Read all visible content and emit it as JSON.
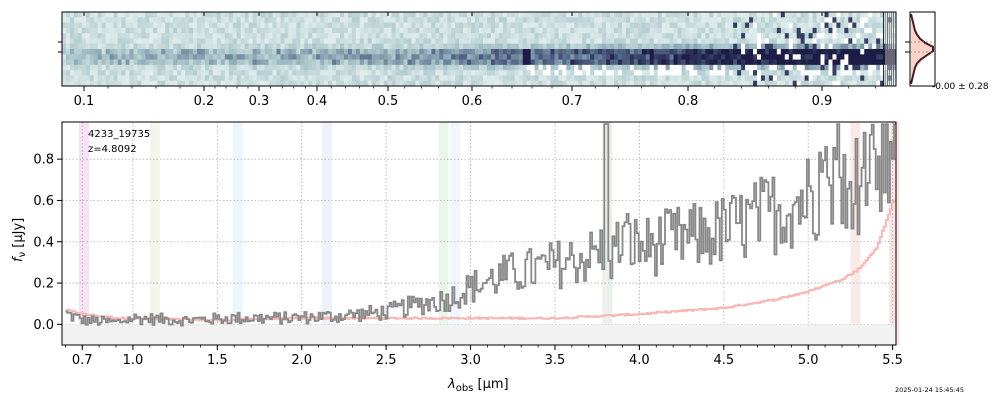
{
  "chart_data": {
    "type": "line",
    "object_id": "4233_19735",
    "redshift_label": "z=4.8092",
    "timestamp": "2025-01-24 15:45:45",
    "xlabel": "λ_obs [μm]",
    "xlabel_main": "λ",
    "xlabel_sub": "obs",
    "xlabel_unit": "[μm]",
    "ylabel": "f_ν [μJy]",
    "ylabel_main": "f",
    "ylabel_sub": "ν",
    "ylabel_unit": "[μJy]",
    "xlim": [
      0.58,
      5.52
    ],
    "ylim": [
      -0.1,
      0.98
    ],
    "grid": true,
    "xticks": [
      {
        "value": 0.7,
        "label": "0.7"
      },
      {
        "value": 1.0,
        "label": "1.0"
      },
      {
        "value": 1.5,
        "label": "1.5"
      },
      {
        "value": 2.0,
        "label": "2.0"
      },
      {
        "value": 2.5,
        "label": "2.5"
      },
      {
        "value": 3.0,
        "label": "3.0"
      },
      {
        "value": 3.5,
        "label": "3.5"
      },
      {
        "value": 4.0,
        "label": "4.0"
      },
      {
        "value": 4.5,
        "label": "4.5"
      },
      {
        "value": 5.0,
        "label": "5.0"
      },
      {
        "value": 5.5,
        "label": "5.5"
      }
    ],
    "yticks": [
      {
        "value": 0.0,
        "label": "0.0"
      },
      {
        "value": 0.2,
        "label": "0.2"
      },
      {
        "value": 0.4,
        "label": "0.4"
      },
      {
        "value": 0.6,
        "label": "0.6"
      },
      {
        "value": 0.8,
        "label": "0.8"
      }
    ],
    "spectrum_2d": {
      "axis_ticks": [
        {
          "value": 0.1,
          "label": "0.1"
        },
        {
          "value": 0.2,
          "label": "0.2"
        },
        {
          "value": 0.3,
          "label": "0.3"
        },
        {
          "value": 0.4,
          "label": "0.4"
        },
        {
          "value": 0.5,
          "label": "0.5"
        },
        {
          "value": 0.6,
          "label": "0.6"
        },
        {
          "value": 0.7,
          "label": "0.7"
        },
        {
          "value": 0.8,
          "label": "0.8"
        },
        {
          "value": 0.9,
          "label": "0.9"
        }
      ],
      "profile_label": "-0.00 ± 0.28"
    },
    "line_markers_um": [
      {
        "center": 0.71,
        "color": "#cc66cc"
      },
      {
        "center": 1.13,
        "color": "#c8c888"
      },
      {
        "center": 1.62,
        "color": "#99ccee"
      },
      {
        "center": 2.15,
        "color": "#aaaadd"
      },
      {
        "center": 2.84,
        "color": "#88cc88"
      },
      {
        "center": 2.91,
        "color": "#aaccee"
      },
      {
        "center": 3.81,
        "color": "#88aa88"
      },
      {
        "center": 5.28,
        "color": "#dd8888"
      },
      {
        "center": 5.51,
        "color": "#dd6666"
      }
    ],
    "series": [
      {
        "name": "flux",
        "color": "#888888",
        "anchors": [
          [
            0.6,
            0.05
          ],
          [
            0.7,
            0.02
          ],
          [
            0.9,
            0.01
          ],
          [
            1.0,
            0.03
          ],
          [
            1.3,
            0.02
          ],
          [
            1.6,
            0.03
          ],
          [
            1.9,
            0.03
          ],
          [
            2.2,
            0.04
          ],
          [
            2.5,
            0.06
          ],
          [
            2.7,
            0.1
          ],
          [
            2.85,
            0.12
          ],
          [
            3.0,
            0.18
          ],
          [
            3.2,
            0.24
          ],
          [
            3.4,
            0.27
          ],
          [
            3.55,
            0.3
          ],
          [
            3.7,
            0.33
          ],
          [
            3.78,
            0.36
          ],
          [
            3.8,
            0.85
          ],
          [
            3.82,
            0.32
          ],
          [
            3.9,
            0.42
          ],
          [
            4.0,
            0.37
          ],
          [
            4.2,
            0.41
          ],
          [
            4.4,
            0.43
          ],
          [
            4.6,
            0.48
          ],
          [
            4.8,
            0.55
          ],
          [
            5.0,
            0.62
          ],
          [
            5.2,
            0.7
          ],
          [
            5.3,
            0.68
          ],
          [
            5.4,
            0.72
          ],
          [
            5.5,
            0.75
          ]
        ]
      },
      {
        "name": "error",
        "color": "#f4b6b2",
        "anchors": [
          [
            0.6,
            0.07
          ],
          [
            0.7,
            0.05
          ],
          [
            0.9,
            0.03
          ],
          [
            1.5,
            0.02
          ],
          [
            2.0,
            0.03
          ],
          [
            2.5,
            0.03
          ],
          [
            3.0,
            0.03
          ],
          [
            3.5,
            0.03
          ],
          [
            4.0,
            0.05
          ],
          [
            4.5,
            0.08
          ],
          [
            4.8,
            0.12
          ],
          [
            5.0,
            0.16
          ],
          [
            5.2,
            0.22
          ],
          [
            5.3,
            0.27
          ],
          [
            5.4,
            0.37
          ],
          [
            5.45,
            0.48
          ],
          [
            5.5,
            0.6
          ]
        ]
      }
    ]
  }
}
